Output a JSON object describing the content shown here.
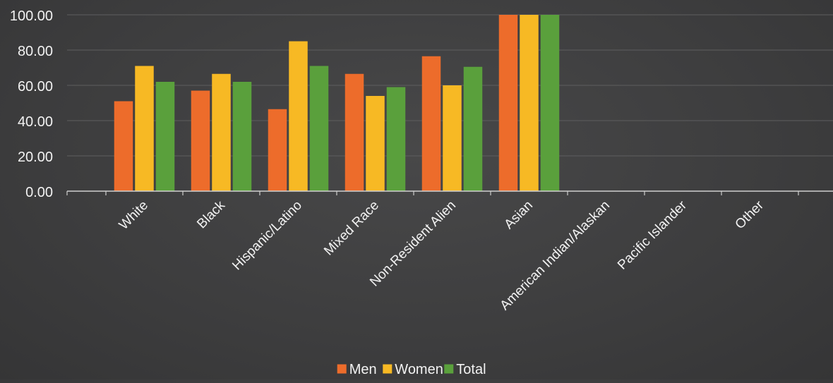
{
  "chart_data": {
    "type": "bar",
    "categories": [
      "White",
      "Black",
      "Hispanic/Latino",
      "Mixed Race",
      "Non-Resident Alien",
      "Asian",
      "American Indian/Alaskan",
      "Pacific Islander",
      "Other"
    ],
    "series": [
      {
        "name": "Men",
        "color": "#ed6c2b",
        "values": [
          51,
          57,
          46.5,
          66.5,
          76.5,
          100,
          null,
          null,
          null
        ]
      },
      {
        "name": "Women",
        "color": "#f7b924",
        "values": [
          71,
          66.5,
          85,
          54,
          60,
          100,
          null,
          null,
          null
        ]
      },
      {
        "name": "Total",
        "color": "#5aa03c",
        "values": [
          62,
          62,
          71,
          59,
          70.5,
          100,
          null,
          null,
          null
        ]
      }
    ],
    "ylim": [
      0,
      100
    ],
    "yticks": [
      "0.00",
      "20.00",
      "40.00",
      "60.00",
      "80.00",
      "100.00"
    ],
    "grid": true,
    "legend": "bottom-center"
  }
}
